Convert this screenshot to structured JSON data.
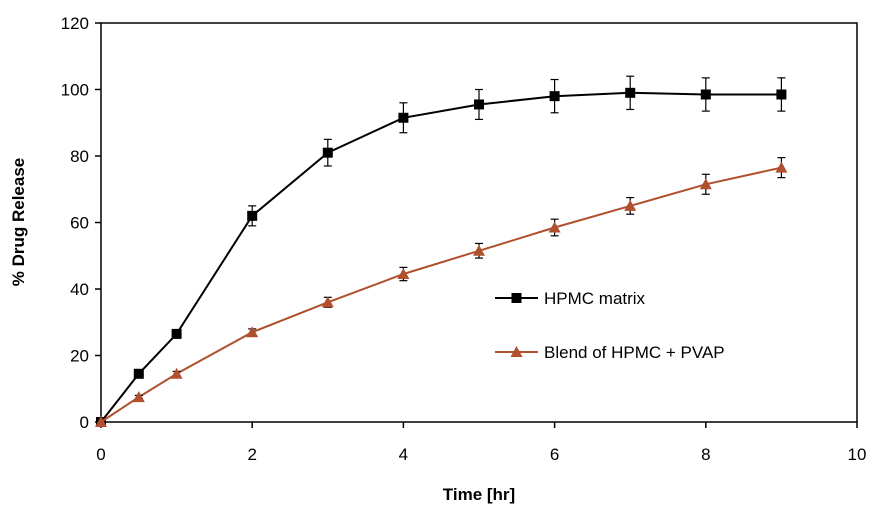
{
  "chart_data": {
    "type": "line",
    "title": "",
    "xlabel": "Time [hr]",
    "ylabel": "% Drug Release",
    "xlim": [
      0,
      10
    ],
    "ylim": [
      0,
      120
    ],
    "x_ticks": [
      0,
      2,
      4,
      6,
      8,
      10
    ],
    "y_ticks": [
      0,
      20,
      40,
      60,
      80,
      100,
      120
    ],
    "grid": false,
    "legend_position": "center-right",
    "series": [
      {
        "name": "HPMC matrix",
        "color": "#000000",
        "marker": "square",
        "x": [
          0,
          0.5,
          1,
          2,
          3,
          4,
          5,
          6,
          7,
          8,
          9
        ],
        "y": [
          0,
          14.5,
          26.5,
          62,
          81,
          91.5,
          95.5,
          98,
          99,
          98.5,
          98.5
        ],
        "error": [
          0,
          0.8,
          1,
          3,
          4,
          4.5,
          4.5,
          5,
          5,
          5,
          5
        ]
      },
      {
        "name": "Blend of HPMC + PVAP",
        "color": "#b0502e",
        "marker": "triangle",
        "x": [
          0,
          0.5,
          1,
          2,
          3,
          4,
          5,
          6,
          7,
          8,
          9
        ],
        "y": [
          0,
          7.5,
          14.5,
          27,
          36,
          44.5,
          51.5,
          58.5,
          65,
          71.5,
          76.5
        ],
        "error": [
          0,
          0.5,
          0.7,
          1,
          1.5,
          2,
          2.2,
          2.5,
          2.5,
          3,
          3
        ]
      }
    ]
  }
}
